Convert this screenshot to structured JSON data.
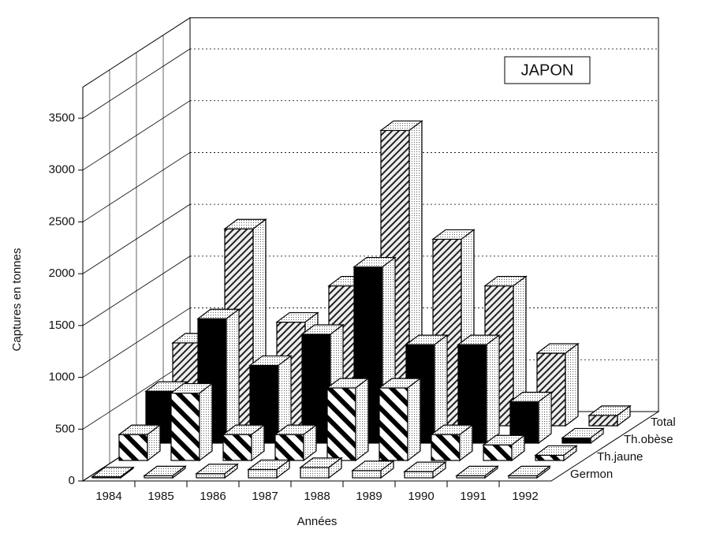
{
  "chart_data": {
    "type": "bar3d",
    "title": "JAPON",
    "y_label": "Captures en tonnes",
    "x_label": "Années",
    "categories": [
      "1984",
      "1985",
      "1986",
      "1987",
      "1988",
      "1989",
      "1990",
      "1991",
      "1992"
    ],
    "series": [
      {
        "name": "Germon",
        "values": [
          10,
          20,
          40,
          80,
          100,
          70,
          60,
          20,
          20
        ]
      },
      {
        "name": "Th.jaune",
        "values": [
          250,
          650,
          250,
          250,
          700,
          700,
          250,
          150,
          50
        ]
      },
      {
        "name": "Th.obèse",
        "values": [
          500,
          1200,
          750,
          1050,
          1700,
          950,
          950,
          400,
          50
        ]
      },
      {
        "name": "Total",
        "values": [
          800,
          1900,
          1000,
          1350,
          2850,
          1800,
          1350,
          700,
          100
        ]
      }
    ],
    "ylim": [
      0,
      3800
    ],
    "yticks": [
      0,
      500,
      1000,
      1500,
      2000,
      2500,
      3000,
      3500
    ],
    "grid": true
  }
}
